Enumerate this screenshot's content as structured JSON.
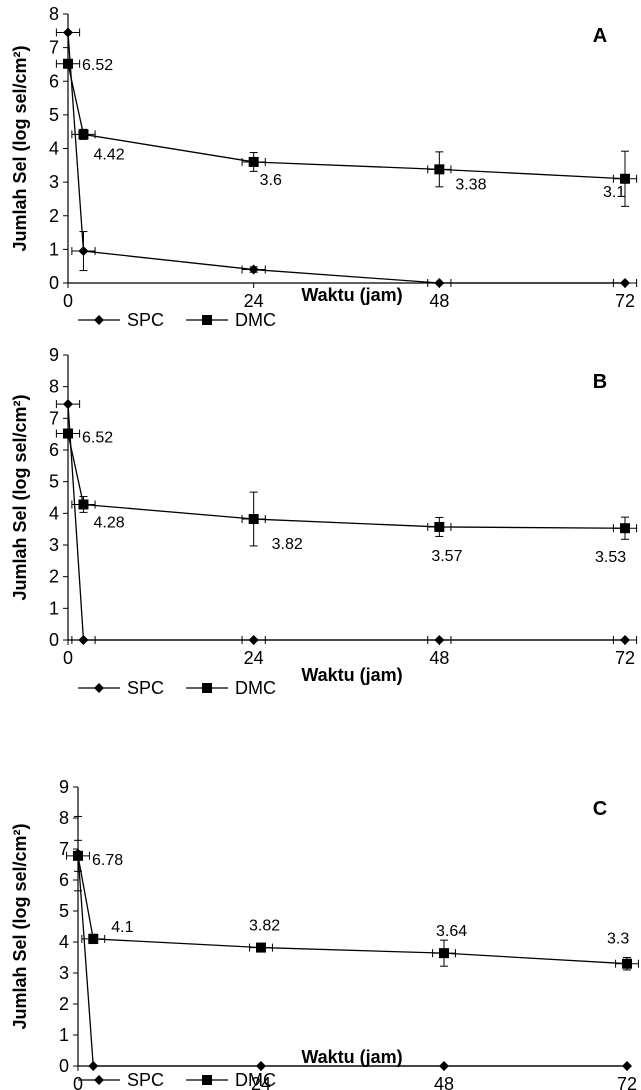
{
  "chart_data": [
    {
      "type": "line",
      "panel_label": "A",
      "xlabel": "Waktu (jam)",
      "ylabel": "Jumlah Sel (log sel/cm²)",
      "xlim": [
        0,
        72
      ],
      "ylim": [
        0,
        8
      ],
      "x_ticks": [
        "0",
        "24",
        "48",
        "72"
      ],
      "y_ticks": [
        "0",
        "1",
        "2",
        "3",
        "4",
        "5",
        "6",
        "7",
        "8"
      ],
      "legend": "bottom",
      "series": [
        {
          "name": "SPC",
          "marker": "diamond",
          "x": [
            0,
            2,
            24,
            48,
            72
          ],
          "y": [
            7.45,
            0.95,
            0.4,
            0,
            0
          ],
          "xerr": [
            1.5,
            1.5,
            1.5,
            1.5,
            1.5
          ],
          "yerr": [
            0,
            0.58,
            0.08,
            0,
            0
          ]
        },
        {
          "name": "DMC",
          "marker": "square",
          "x": [
            0,
            2,
            24,
            48,
            72
          ],
          "y": [
            6.52,
            4.42,
            3.6,
            3.38,
            3.1
          ],
          "xerr": [
            1.5,
            1.5,
            1.5,
            1.5,
            1.5
          ],
          "yerr": [
            0.1,
            0.15,
            0.28,
            0.52,
            0.82
          ],
          "labels": [
            "6.52",
            "4.42",
            "3.6",
            "3.38",
            "3.1"
          ]
        }
      ]
    },
    {
      "type": "line",
      "panel_label": "B",
      "xlabel": "Waktu (jam)",
      "ylabel": "Jumlah Sel (log sel/cm²)",
      "xlim": [
        0,
        72
      ],
      "ylim": [
        0,
        9
      ],
      "x_ticks": [
        "0",
        "24",
        "48",
        "72"
      ],
      "y_ticks": [
        "0",
        "1",
        "2",
        "3",
        "4",
        "5",
        "6",
        "7",
        "8",
        "9"
      ],
      "legend": "bottom",
      "series": [
        {
          "name": "SPC",
          "marker": "diamond",
          "x": [
            0,
            2,
            24,
            48,
            72
          ],
          "y": [
            7.45,
            0,
            0,
            0,
            0
          ],
          "xerr": [
            1.5,
            1.5,
            1.5,
            1.5,
            1.5
          ],
          "yerr": [
            0,
            0,
            0,
            0,
            0
          ]
        },
        {
          "name": "DMC",
          "marker": "square",
          "x": [
            0,
            2,
            24,
            48,
            72
          ],
          "y": [
            6.52,
            4.28,
            3.82,
            3.57,
            3.53
          ],
          "xerr": [
            1.5,
            1.5,
            1.5,
            1.5,
            1.5
          ],
          "yerr": [
            0.1,
            0.25,
            0.85,
            0.3,
            0.35
          ],
          "labels": [
            "6.52",
            "4.28",
            "3.82",
            "3.57",
            "3.53"
          ]
        }
      ]
    },
    {
      "type": "line",
      "panel_label": "C",
      "xlabel": "Waktu (jam)",
      "ylabel": "Jumlah Sel (log sel/cm²)",
      "xlim": [
        0,
        72
      ],
      "ylim": [
        0,
        9
      ],
      "x_ticks": [
        "0",
        "24",
        "48",
        "72"
      ],
      "y_ticks": [
        "0",
        "1",
        "2",
        "3",
        "4",
        "5",
        "6",
        "7",
        "8",
        "9"
      ],
      "legend": "bottom",
      "series": [
        {
          "name": "SPC",
          "marker": "diamond",
          "x": [
            0,
            2,
            24,
            48,
            72
          ],
          "y": [
            6.85,
            0,
            0,
            0,
            0
          ],
          "xerr": [
            0,
            0,
            0,
            0,
            0
          ],
          "yerr": [
            1.2,
            0,
            0,
            0,
            0
          ]
        },
        {
          "name": "DMC",
          "marker": "square",
          "x": [
            0,
            2,
            24,
            48,
            72
          ],
          "y": [
            6.78,
            4.1,
            3.82,
            3.64,
            3.3
          ],
          "xerr": [
            1.5,
            1.5,
            1.5,
            1.5,
            1.5
          ],
          "yerr": [
            0.5,
            0.15,
            0.12,
            0.42,
            0.2
          ],
          "labels": [
            "6.78",
            "4.1",
            "3.82",
            "3.64",
            "3.3"
          ]
        }
      ]
    }
  ]
}
